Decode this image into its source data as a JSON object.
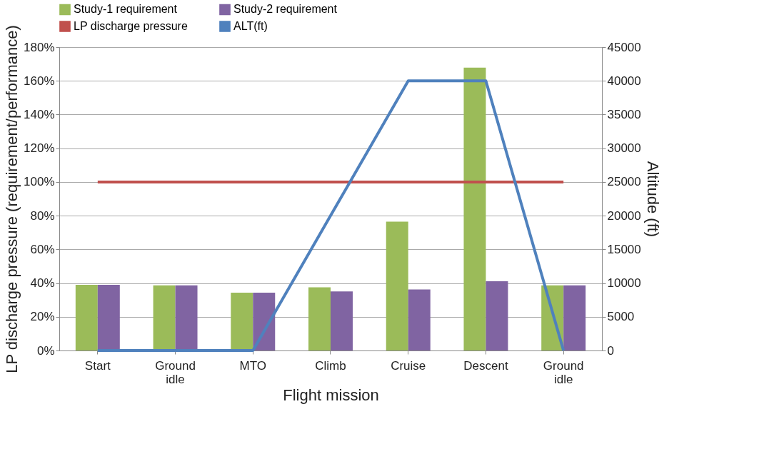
{
  "chart_data": {
    "type": "bar",
    "xlabel": "Flight mission",
    "ylabel": "LP discharge pressure (requirement/performance)",
    "y2label": "Altitude (ft)",
    "categories": [
      "Start",
      "Ground idle",
      "MTO",
      "Climb",
      "Cruise",
      "Descent",
      "Ground idle"
    ],
    "series": [
      {
        "name": "Study-1    requirement",
        "color": "#9bbb59",
        "values": [
          39,
          38.6,
          34.3,
          37.5,
          76.5,
          167.8,
          38.6
        ]
      },
      {
        "name": "Study-2    requirement",
        "color": "#8064a2",
        "values": [
          39,
          38.6,
          34.3,
          35,
          36.2,
          41.1,
          38.6
        ]
      },
      {
        "name": "LP discharge pressure",
        "color": "#c0504d",
        "type": "line",
        "values": [
          100,
          100,
          100,
          100,
          100,
          100,
          100
        ]
      },
      {
        "name": "ALT(ft)",
        "color": "#4f81bd",
        "type": "line",
        "axis": "y2",
        "values": [
          0,
          0,
          0,
          20000,
          40000,
          40000,
          0
        ]
      }
    ],
    "ylim": [
      0,
      180
    ],
    "yticks": [
      {
        "value": 0,
        "label": "0%"
      },
      {
        "value": 20,
        "label": "20%"
      },
      {
        "value": 40,
        "label": "40%"
      },
      {
        "value": 60,
        "label": "60%"
      },
      {
        "value": 80,
        "label": "80%"
      },
      {
        "value": 100,
        "label": "100%"
      },
      {
        "value": 120,
        "label": "120%"
      },
      {
        "value": 140,
        "label": "140%"
      },
      {
        "value": 160,
        "label": "160%"
      },
      {
        "value": 180,
        "label": "180%"
      }
    ],
    "y2lim": [
      0,
      45000
    ],
    "y2ticks": [
      0,
      5000,
      10000,
      15000,
      20000,
      25000,
      30000,
      35000,
      40000,
      45000
    ],
    "grid": "y",
    "legend": "top",
    "line_style": "solid",
    "marker": "none"
  }
}
